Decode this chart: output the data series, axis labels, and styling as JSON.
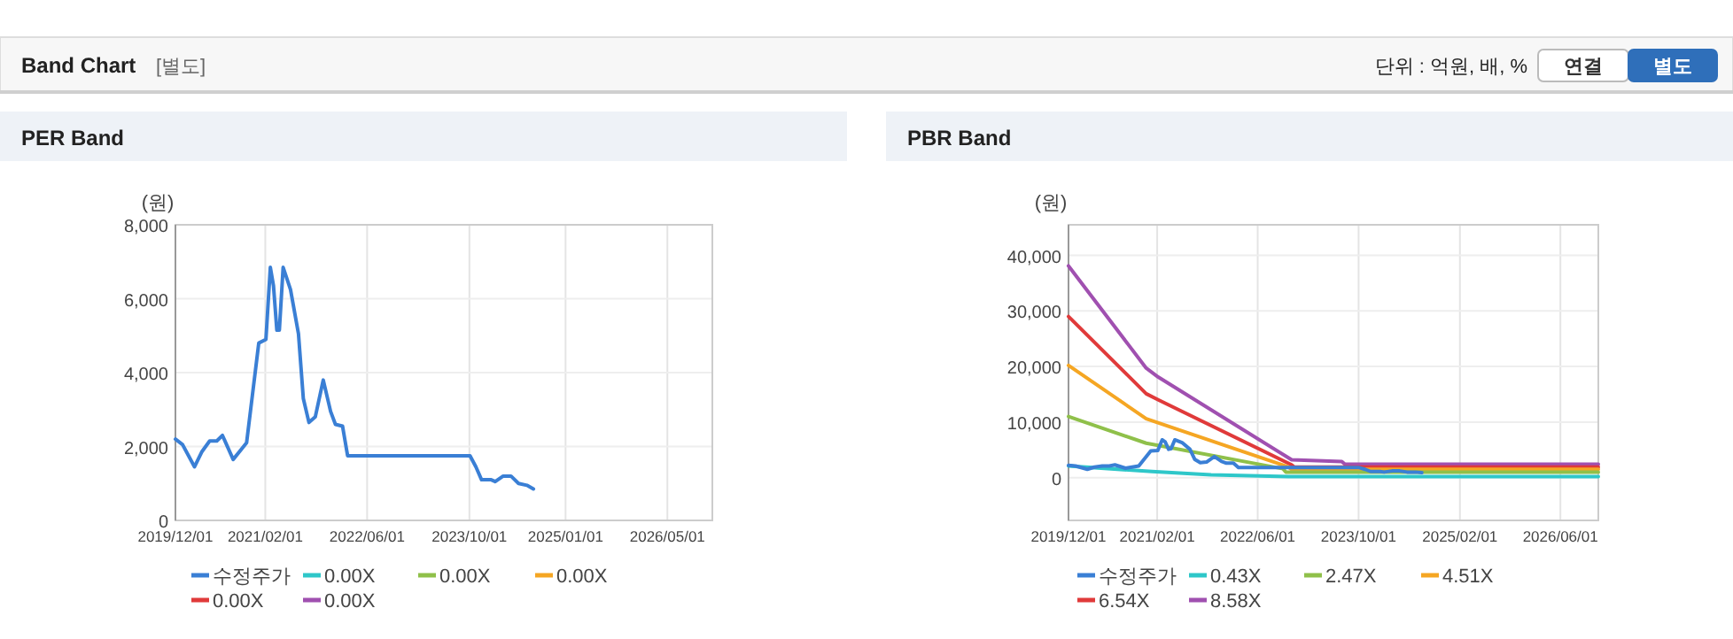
{
  "chart_data": [
    {
      "type": "other",
      "title": "Band Chart",
      "subtitle": "[별도]",
      "annotations": [
        "단위 : 억원, 배, %",
        "연결",
        "별도"
      ]
    },
    {
      "type": "line",
      "title": "PER Band",
      "ylabel": "(원)",
      "xlim": [
        "2019-12-01",
        "2026-12-01"
      ],
      "xticks": [
        {
          "value": "2019-12-01",
          "label": "2019/12/01"
        },
        {
          "value": "2021-02-01",
          "label": "2021/02/01"
        },
        {
          "value": "2022-06-01",
          "label": "2022/06/01"
        },
        {
          "value": "2023-10-01",
          "label": "2023/10/01"
        },
        {
          "value": "2025-01-01",
          "label": "2025/01/01"
        },
        {
          "value": "2026-05-01",
          "label": "2026/05/01"
        }
      ],
      "ylim": [
        0,
        8000
      ],
      "yticks": [
        0,
        {
          "value": 2000,
          "label": "2,000"
        },
        {
          "value": 4000,
          "label": "4,000"
        },
        {
          "value": 6000,
          "label": "6,000"
        },
        {
          "value": 8000,
          "label": "8,000"
        }
      ],
      "grid": true,
      "legend": "bottom",
      "x": [
        "2019-12-01",
        "2020-01-04",
        "2020-03-01",
        "2020-04-04",
        "2020-05-12",
        "2020-06-15",
        "2020-07-12",
        "2020-09-01",
        "2020-11-04",
        "2021-01-01",
        "2021-02-04",
        "2021-02-25",
        "2021-03-12",
        "2021-03-28",
        "2021-04-09",
        "2021-04-27",
        "2021-06-01",
        "2021-07-09",
        "2021-08-01",
        "2021-08-28",
        "2021-09-27",
        "2021-11-04",
        "2021-12-09",
        "2022-01-01",
        "2022-02-04",
        "2022-02-28",
        "2023-10-04",
        "2023-11-01",
        "2023-11-28",
        "2024-01-13",
        "2024-02-01",
        "2024-03-10",
        "2024-04-16",
        "2024-05-22",
        "2024-07-01",
        "2024-08-01"
      ],
      "series": [
        {
          "name": "수정주가",
          "color": "#3a7fd5",
          "values": [
            2200,
            2050,
            1450,
            1850,
            2150,
            2150,
            2300,
            1650,
            2100,
            4800,
            4900,
            6850,
            6350,
            5150,
            5150,
            6850,
            6250,
            5050,
            3300,
            2650,
            2800,
            3800,
            2950,
            2600,
            2550,
            1750,
            1750,
            1450,
            1100,
            1100,
            1050,
            1200,
            1200,
            1000,
            950,
            850
          ]
        },
        {
          "name": "0.00X",
          "color": "#2ec7c9",
          "values": [
            null,
            null,
            null,
            null,
            null,
            null,
            null,
            null,
            null,
            null,
            null,
            null,
            null,
            null,
            null,
            null,
            null,
            null,
            null,
            null,
            null,
            null,
            null,
            null,
            null,
            null,
            null,
            null,
            null,
            null,
            null,
            null,
            null,
            null,
            null,
            null
          ]
        },
        {
          "name": "0.00X",
          "color": "#8fc04a",
          "values": [
            null,
            null,
            null,
            null,
            null,
            null,
            null,
            null,
            null,
            null,
            null,
            null,
            null,
            null,
            null,
            null,
            null,
            null,
            null,
            null,
            null,
            null,
            null,
            null,
            null,
            null,
            null,
            null,
            null,
            null,
            null,
            null,
            null,
            null,
            null,
            null
          ]
        },
        {
          "name": "0.00X",
          "color": "#f5a623",
          "values": [
            null,
            null,
            null,
            null,
            null,
            null,
            null,
            null,
            null,
            null,
            null,
            null,
            null,
            null,
            null,
            null,
            null,
            null,
            null,
            null,
            null,
            null,
            null,
            null,
            null,
            null,
            null,
            null,
            null,
            null,
            null,
            null,
            null,
            null,
            null,
            null
          ]
        },
        {
          "name": "0.00X",
          "color": "#e03a3a",
          "values": [
            null,
            null,
            null,
            null,
            null,
            null,
            null,
            null,
            null,
            null,
            null,
            null,
            null,
            null,
            null,
            null,
            null,
            null,
            null,
            null,
            null,
            null,
            null,
            null,
            null,
            null,
            null,
            null,
            null,
            null,
            null,
            null,
            null,
            null,
            null,
            null
          ]
        },
        {
          "name": "0.00X",
          "color": "#a050b0",
          "values": [
            null,
            null,
            null,
            null,
            null,
            null,
            null,
            null,
            null,
            null,
            null,
            null,
            null,
            null,
            null,
            null,
            null,
            null,
            null,
            null,
            null,
            null,
            null,
            null,
            null,
            null,
            null,
            null,
            null,
            null,
            null,
            null,
            null,
            null,
            null,
            null
          ]
        }
      ]
    },
    {
      "type": "line",
      "title": "PBR Band",
      "ylabel": "(원)",
      "xlim": [
        "2019-12-01",
        "2026-12-01"
      ],
      "xticks": [
        {
          "value": "2019-12-01",
          "label": "2019/12/01"
        },
        {
          "value": "2021-02-01",
          "label": "2021/02/01"
        },
        {
          "value": "2022-06-01",
          "label": "2022/06/01"
        },
        {
          "value": "2023-10-01",
          "label": "2023/10/01"
        },
        {
          "value": "2025-02-01",
          "label": "2025/02/01"
        },
        {
          "value": "2026-06-01",
          "label": "2026/06/01"
        }
      ],
      "ylim": [
        -7700,
        45500
      ],
      "yticks": [
        0,
        {
          "value": 10000,
          "label": "10,000"
        },
        {
          "value": 20000,
          "label": "20,000"
        },
        {
          "value": 30000,
          "label": "30,000"
        },
        {
          "value": 40000,
          "label": "40,000"
        }
      ],
      "grid": true,
      "legend": "bottom",
      "series": [
        {
          "name": "수정주가",
          "color": "#3a7fd5",
          "x": [
            "2019-12-01",
            "2020-01-04",
            "2020-03-01",
            "2020-04-04",
            "2020-05-12",
            "2020-06-15",
            "2020-07-12",
            "2020-09-01",
            "2020-11-04",
            "2021-01-01",
            "2021-02-04",
            "2021-02-25",
            "2021-03-12",
            "2021-03-28",
            "2021-04-09",
            "2021-04-27",
            "2021-06-01",
            "2021-07-09",
            "2021-08-01",
            "2021-08-28",
            "2021-09-27",
            "2021-11-04",
            "2021-12-09",
            "2022-01-01",
            "2022-02-04",
            "2022-02-28",
            "2023-10-04",
            "2023-11-01",
            "2023-11-28",
            "2024-01-13",
            "2024-02-01",
            "2024-03-10",
            "2024-04-16",
            "2024-05-22",
            "2024-07-01",
            "2024-08-01"
          ],
          "values": [
            2200,
            2100,
            1500,
            1900,
            2100,
            2100,
            2300,
            1700,
            2100,
            4800,
            4900,
            6800,
            6400,
            5100,
            5200,
            6800,
            6300,
            5100,
            3300,
            2700,
            2800,
            3800,
            2900,
            2600,
            2600,
            1800,
            1800,
            1500,
            1100,
            1100,
            1000,
            1200,
            1200,
            1000,
            1000,
            900
          ]
        },
        {
          "name": "0.43X",
          "color": "#2ec7c9",
          "x": [
            "2019-12-01",
            "2021-01-07",
            "2021-10-19",
            "2022-10-28",
            "2026-12-01"
          ],
          "values": [
            2100,
            1100,
            500,
            200,
            200
          ]
        },
        {
          "name": "2.47X",
          "color": "#8fc04a",
          "x": [
            "2019-12-01",
            "2020-12-10",
            "2022-10-01",
            "2022-10-15",
            "2026-12-01"
          ],
          "values": [
            11000,
            6200,
            1600,
            1000,
            1000
          ]
        },
        {
          "name": "4.51X",
          "color": "#f5a623",
          "x": [
            "2019-12-01",
            "2020-12-10",
            "2022-10-28",
            "2022-11-10",
            "2026-12-01"
          ],
          "values": [
            20200,
            10600,
            1900,
            1500,
            1500
          ]
        },
        {
          "name": "6.54X",
          "color": "#e03a3a",
          "x": [
            "2019-12-01",
            "2020-12-10",
            "2021-02-06",
            "2022-11-12",
            "2022-11-25",
            "2026-12-01"
          ],
          "values": [
            29000,
            15100,
            14000,
            2300,
            1900,
            1900
          ]
        },
        {
          "name": "8.58X",
          "color": "#a050b0",
          "x": [
            "2019-12-01",
            "2020-12-10",
            "2021-02-06",
            "2022-11-12",
            "2023-07-12",
            "2023-07-27",
            "2026-12-01"
          ],
          "values": [
            38100,
            19700,
            18100,
            3200,
            2900,
            2400,
            2400
          ]
        }
      ]
    }
  ]
}
